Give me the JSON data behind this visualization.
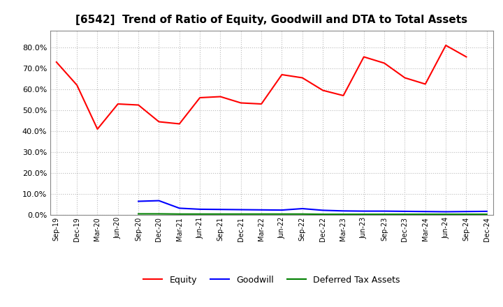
{
  "title": "[6542]  Trend of Ratio of Equity, Goodwill and DTA to Total Assets",
  "x_labels": [
    "Sep-19",
    "Dec-19",
    "Mar-20",
    "Jun-20",
    "Sep-20",
    "Dec-20",
    "Mar-21",
    "Jun-21",
    "Sep-21",
    "Dec-21",
    "Mar-22",
    "Jun-22",
    "Sep-22",
    "Dec-22",
    "Mar-23",
    "Jun-23",
    "Sep-23",
    "Dec-23",
    "Mar-24",
    "Jun-24",
    "Sep-24",
    "Dec-24"
  ],
  "equity": [
    0.73,
    0.62,
    0.41,
    0.53,
    0.525,
    0.445,
    0.435,
    0.56,
    0.565,
    0.535,
    0.53,
    0.67,
    0.655,
    0.595,
    0.57,
    0.755,
    0.725,
    0.655,
    0.625,
    0.81,
    0.755,
    null
  ],
  "goodwill": [
    null,
    null,
    null,
    null,
    0.065,
    0.068,
    0.032,
    0.027,
    0.026,
    0.025,
    0.024,
    0.023,
    0.03,
    0.022,
    0.019,
    0.018,
    0.018,
    0.017,
    0.016,
    0.015,
    0.016,
    0.017
  ],
  "dta": [
    null,
    null,
    null,
    null,
    0.005,
    0.005,
    0.004,
    0.004,
    0.004,
    0.004,
    0.004,
    0.004,
    0.004,
    0.003,
    0.003,
    0.003,
    0.003,
    0.003,
    0.003,
    0.003,
    0.003,
    0.003
  ],
  "equity_color": "#ff0000",
  "goodwill_color": "#0000ff",
  "dta_color": "#008000",
  "background_color": "#ffffff",
  "grid_color": "#bbbbbb",
  "ylim": [
    0.0,
    0.88
  ],
  "yticks": [
    0.0,
    0.1,
    0.2,
    0.3,
    0.4,
    0.5,
    0.6,
    0.7,
    0.8
  ],
  "title_fontsize": 11,
  "legend_labels": [
    "Equity",
    "Goodwill",
    "Deferred Tax Assets"
  ]
}
